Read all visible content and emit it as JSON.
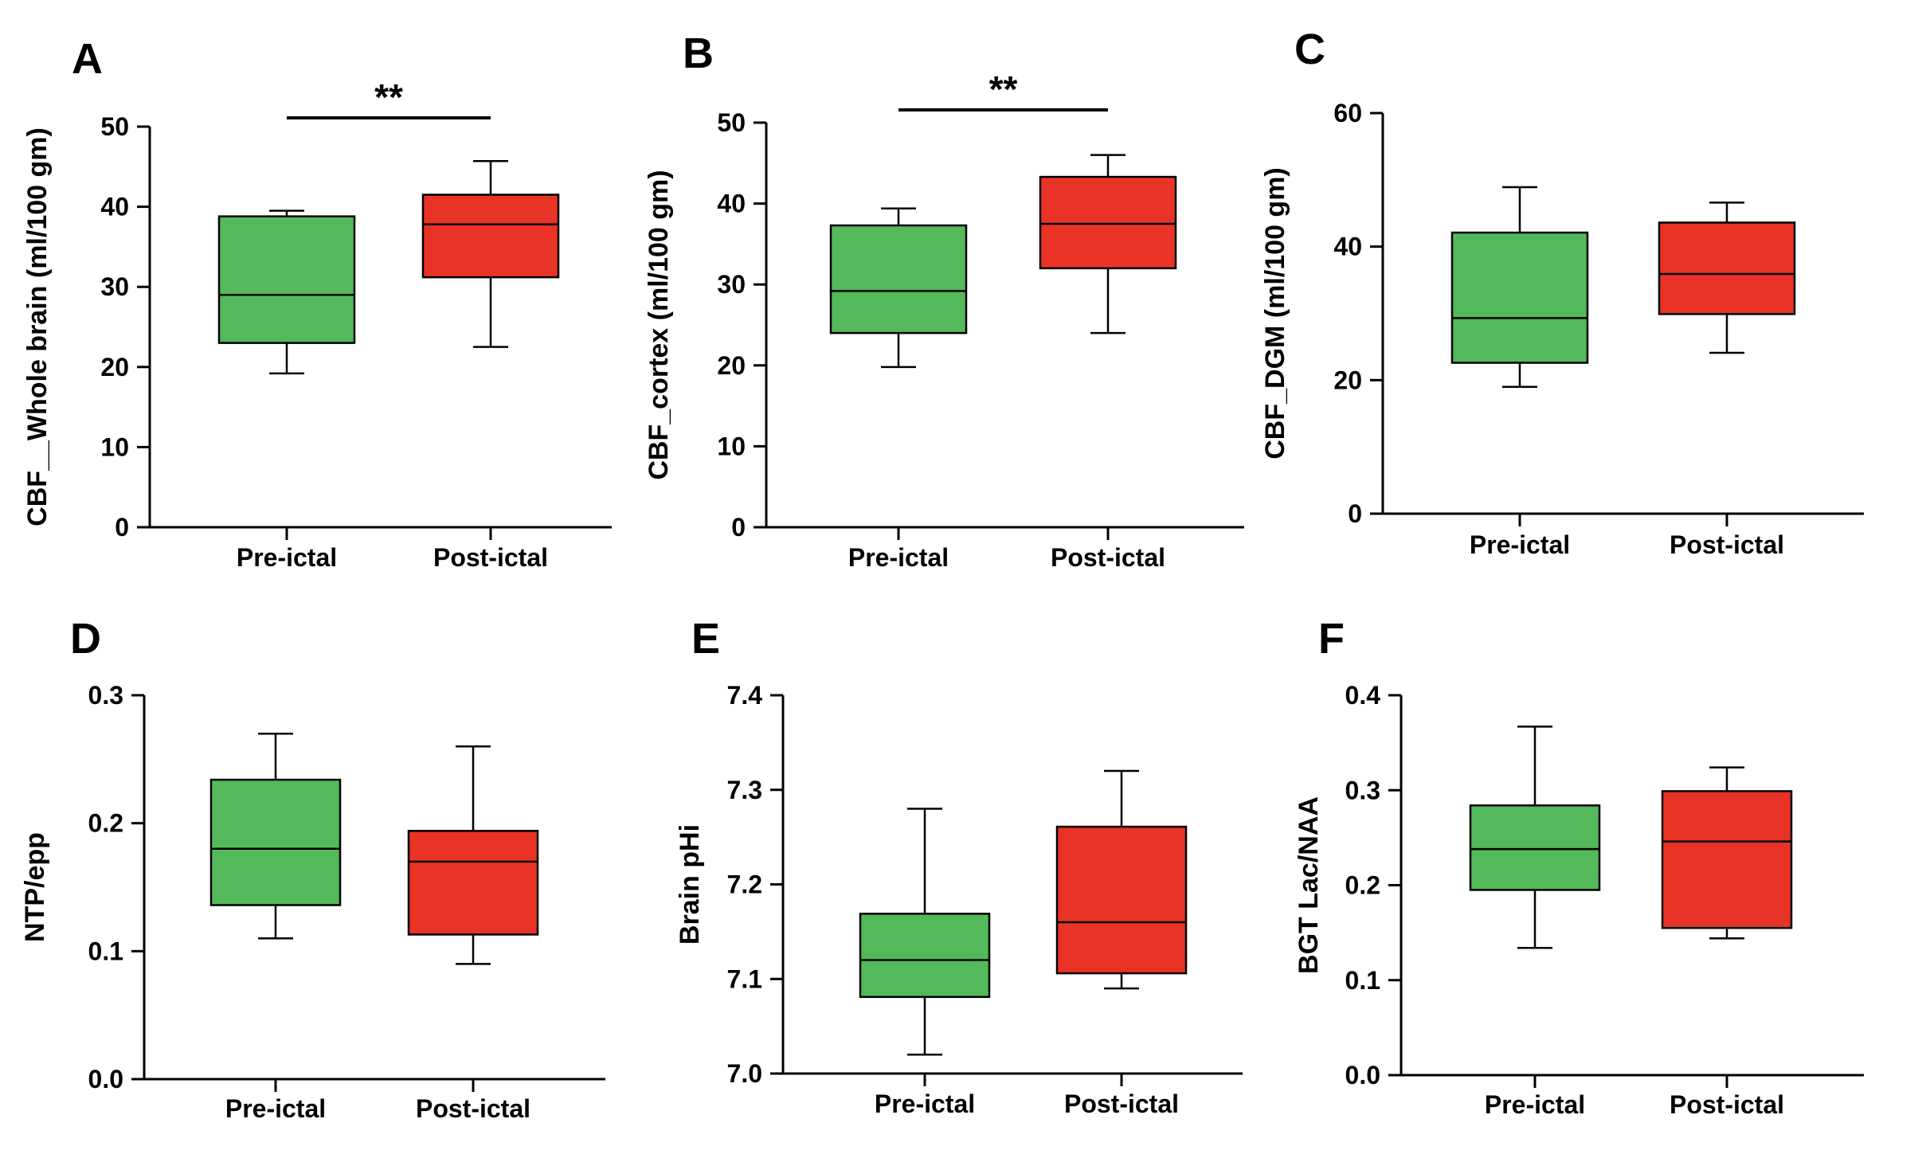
{
  "colors": {
    "pre": "#53b95a",
    "post": "#e83326",
    "ink": "#000000"
  },
  "chart_data": [
    {
      "panel": "A",
      "type": "box",
      "ylabel": "CBF__Whole brain (ml/100 gm)",
      "categories": [
        "Pre-ictal",
        "Post-ictal"
      ],
      "ylim": [
        0,
        50
      ],
      "yticks": [
        "0",
        "10",
        "20",
        "30",
        "40",
        "50"
      ],
      "boxes": [
        {
          "category": "Pre-ictal",
          "min": 19.2,
          "q1": 23.0,
          "median": 29.0,
          "q3": 38.8,
          "max": 39.5
        },
        {
          "category": "Post-ictal",
          "min": 22.5,
          "q1": 31.2,
          "median": 37.8,
          "q3": 41.5,
          "max": 45.7
        }
      ],
      "significance": "**"
    },
    {
      "panel": "B",
      "type": "box",
      "ylabel": "CBF_cortex (ml/100 gm)",
      "categories": [
        "Pre-ictal",
        "Post-ictal"
      ],
      "ylim": [
        0,
        50
      ],
      "yticks": [
        "0",
        "10",
        "20",
        "30",
        "40",
        "50"
      ],
      "boxes": [
        {
          "category": "Pre-ictal",
          "min": 19.8,
          "q1": 24.0,
          "median": 29.2,
          "q3": 37.3,
          "max": 39.4
        },
        {
          "category": "Post-ictal",
          "min": 24.0,
          "q1": 32.0,
          "median": 37.5,
          "q3": 43.3,
          "max": 46.0
        }
      ],
      "significance": "**"
    },
    {
      "panel": "C",
      "type": "box",
      "ylabel": "CBF_DGM (ml/100 gm)",
      "categories": [
        "Pre-ictal",
        "Post-ictal"
      ],
      "ylim": [
        0,
        60
      ],
      "yticks": [
        "0",
        "20",
        "40",
        "60"
      ],
      "boxes": [
        {
          "category": "Pre-ictal",
          "min": 19.0,
          "q1": 22.6,
          "median": 29.3,
          "q3": 42.1,
          "max": 48.9
        },
        {
          "category": "Post-ictal",
          "min": 24.1,
          "q1": 29.9,
          "median": 35.9,
          "q3": 43.6,
          "max": 46.6
        }
      ],
      "significance": ""
    },
    {
      "panel": "D",
      "type": "box",
      "ylabel": "NTP/epp",
      "categories": [
        "Pre-ictal",
        "Post-ictal"
      ],
      "ylim": [
        0,
        0.3
      ],
      "yticks": [
        "0.0",
        "0.1",
        "0.2",
        "0.3"
      ],
      "boxes": [
        {
          "category": "Pre-ictal",
          "min": 0.11,
          "q1": 0.136,
          "median": 0.18,
          "q3": 0.234,
          "max": 0.27
        },
        {
          "category": "Post-ictal",
          "min": 0.09,
          "q1": 0.113,
          "median": 0.17,
          "q3": 0.194,
          "max": 0.26
        }
      ],
      "significance": ""
    },
    {
      "panel": "E",
      "type": "box",
      "ylabel": "Brain pHi",
      "categories": [
        "Pre-ictal",
        "Post-ictal"
      ],
      "ylim": [
        7.0,
        7.4
      ],
      "yticks": [
        "7.0",
        "7.1",
        "7.2",
        "7.3",
        "7.4"
      ],
      "boxes": [
        {
          "category": "Pre-ictal",
          "min": 7.02,
          "q1": 7.081,
          "median": 7.12,
          "q3": 7.169,
          "max": 7.28
        },
        {
          "category": "Post-ictal",
          "min": 7.09,
          "q1": 7.106,
          "median": 7.16,
          "q3": 7.261,
          "max": 7.32
        }
      ],
      "significance": ""
    },
    {
      "panel": "F",
      "type": "box",
      "ylabel": "BGT Lac/NAA",
      "categories": [
        "Pre-ictal",
        "Post-ictal"
      ],
      "ylim": [
        0,
        0.4
      ],
      "yticks": [
        "0.0",
        "0.1",
        "0.2",
        "0.3",
        "0.4"
      ],
      "boxes": [
        {
          "category": "Pre-ictal",
          "min": 0.134,
          "q1": 0.195,
          "median": 0.238,
          "q3": 0.284,
          "max": 0.367
        },
        {
          "category": "Post-ictal",
          "min": 0.144,
          "q1": 0.155,
          "median": 0.246,
          "q3": 0.299,
          "max": 0.324
        }
      ],
      "significance": ""
    }
  ]
}
